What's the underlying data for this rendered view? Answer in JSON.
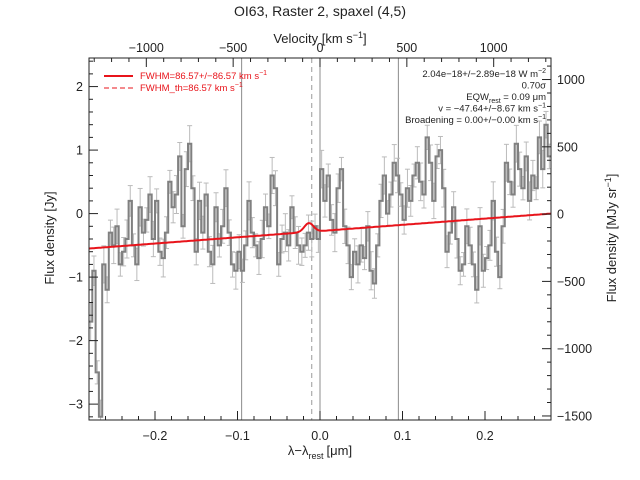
{
  "chart_data": {
    "type": "line",
    "title": "OI63, Raster 2, spaxel (4,5)",
    "xlabel_main": "λ−λ",
    "xlabel_sub": "rest",
    "xlabel_unit": "[μm]",
    "xlabel_top": "Velocity [km s",
    "xlabel_top_sup": "−1",
    "xlabel_top_close": "]",
    "ylabel_left": "Flux density [Jy]",
    "ylabel_right": "Flux density [MJy sr",
    "ylabel_right_sup": "−1",
    "ylabel_right_close": "]",
    "xlim": [
      -0.28,
      0.28
    ],
    "ylim": [
      -3.25,
      2.45
    ],
    "xlim_top": [
      -1330,
      1330
    ],
    "ylim_right": [
      -1530,
      1160
    ],
    "x_ticks": [
      -0.2,
      -0.1,
      0.0,
      0.1,
      0.2
    ],
    "x_tick_labels": [
      "−0.2",
      "−0.1",
      "0.0",
      "0.1",
      "0.2"
    ],
    "y_ticks": [
      -3,
      -2,
      -1,
      0,
      1,
      2
    ],
    "y_tick_labels": [
      "−3",
      "−2",
      "−1",
      "0",
      "1",
      "2"
    ],
    "top_ticks": [
      -1000,
      -500,
      0,
      500,
      1000
    ],
    "top_tick_labels": [
      "−1000",
      "−500",
      "0",
      "500",
      "1000"
    ],
    "right_ticks": [
      -1500,
      -1000,
      -500,
      0,
      500,
      1000
    ],
    "right_tick_labels": [
      "−1500",
      "−1000",
      "−500",
      "0",
      "500",
      "1000"
    ],
    "vlines_solid_gray": [
      -0.095,
      0.0,
      0.095
    ],
    "vline_dashed_gray": -0.01,
    "legend": {
      "placement": "top-left",
      "entries": [
        {
          "style": "solid",
          "color": "#e8141b",
          "label": "FWHM=86.57+/−86.57 km s",
          "sup": "−1"
        },
        {
          "style": "dashed",
          "color": "#e8141b",
          "label": "FWHM_th=86.57 km s",
          "sup": "−1"
        }
      ]
    },
    "annotations": [
      {
        "text": "2.04e−18+/−2.89e−18 W m",
        "sup": "−2"
      },
      {
        "text": "0.70σ"
      },
      {
        "text": "EQW",
        "sub": "rest",
        "text_after": " = 0.09 μm"
      },
      {
        "text": "v = −47.64+/−8.67 km s",
        "sup": "−1"
      },
      {
        "text": "Broadening = 0.00+/−0.00 km s",
        "sup": "−1"
      }
    ],
    "series": [
      {
        "kind": "spectrum",
        "style": "step",
        "color": "#808080",
        "errorbar_color": "#bbbbbb",
        "x": [
          -0.28,
          -0.276,
          -0.272,
          -0.268,
          -0.264,
          -0.26,
          -0.256,
          -0.252,
          -0.248,
          -0.244,
          -0.24,
          -0.236,
          -0.232,
          -0.228,
          -0.224,
          -0.22,
          -0.216,
          -0.212,
          -0.208,
          -0.204,
          -0.2,
          -0.196,
          -0.192,
          -0.188,
          -0.184,
          -0.18,
          -0.176,
          -0.172,
          -0.168,
          -0.164,
          -0.16,
          -0.156,
          -0.152,
          -0.148,
          -0.144,
          -0.14,
          -0.136,
          -0.132,
          -0.128,
          -0.124,
          -0.12,
          -0.116,
          -0.112,
          -0.108,
          -0.104,
          -0.1,
          -0.096,
          -0.092,
          -0.088,
          -0.084,
          -0.08,
          -0.076,
          -0.072,
          -0.068,
          -0.064,
          -0.06,
          -0.056,
          -0.052,
          -0.048,
          -0.044,
          -0.04,
          -0.036,
          -0.032,
          -0.028,
          -0.024,
          -0.02,
          -0.016,
          -0.012,
          -0.008,
          -0.004,
          0.0,
          0.004,
          0.008,
          0.012,
          0.016,
          0.02,
          0.024,
          0.028,
          0.032,
          0.036,
          0.04,
          0.044,
          0.048,
          0.052,
          0.056,
          0.06,
          0.064,
          0.068,
          0.072,
          0.076,
          0.08,
          0.084,
          0.088,
          0.092,
          0.096,
          0.1,
          0.104,
          0.108,
          0.112,
          0.116,
          0.12,
          0.124,
          0.128,
          0.132,
          0.136,
          0.14,
          0.144,
          0.148,
          0.152,
          0.156,
          0.16,
          0.164,
          0.168,
          0.172,
          0.176,
          0.18,
          0.184,
          0.188,
          0.192,
          0.196,
          0.2,
          0.204,
          0.208,
          0.212,
          0.216,
          0.22,
          0.224,
          0.228,
          0.232,
          0.236,
          0.24,
          0.244,
          0.248,
          0.252,
          0.256,
          0.26,
          0.264,
          0.268,
          0.272,
          0.276
        ],
        "y": [
          -1.7,
          -0.9,
          -2.5,
          -3.2,
          -0.8,
          -1.2,
          -0.3,
          -0.5,
          -0.2,
          -0.8,
          -0.6,
          -0.4,
          0.2,
          -0.5,
          -0.8,
          0.1,
          -0.3,
          -0.1,
          0.3,
          -0.4,
          0.2,
          -0.6,
          -0.7,
          -0.3,
          0.5,
          0.1,
          0.3,
          0.9,
          -0.2,
          0.7,
          1.1,
          0.4,
          -0.6,
          0.2,
          -0.3,
          0.3,
          -0.6,
          -0.8,
          0.1,
          -0.5,
          -0.2,
          0.4,
          -0.3,
          -0.8,
          -0.9,
          -0.6,
          -0.9,
          -0.5,
          0.2,
          -0.3,
          -0.5,
          -0.7,
          -0.4,
          0.1,
          -0.2,
          0.6,
          0.4,
          -0.8,
          -0.4,
          -0.3,
          -0.5,
          0.1,
          -0.3,
          -0.5,
          -0.6,
          -0.5,
          -0.3,
          -0.4,
          -0.2,
          -0.4,
          0.7,
          0.2,
          0.6,
          -0.1,
          -0.3,
          0.4,
          0.7,
          -0.2,
          -0.5,
          -1.0,
          -0.6,
          -0.8,
          -0.5,
          -0.7,
          -0.2,
          -0.9,
          -1.1,
          -0.5,
          0.2,
          0.6,
          0.0,
          0.3,
          0.8,
          0.6,
          0.3,
          -0.1,
          0.4,
          0.2,
          0.6,
          0.8,
          0.5,
          0.3,
          1.2,
          0.8,
          0.2,
          0.9,
          1.0,
          0.4,
          -0.6,
          -0.3,
          0.1,
          -0.4,
          -0.9,
          -0.8,
          -0.2,
          -0.5,
          -0.8,
          -1.2,
          -0.2,
          -0.9,
          -0.7,
          -0.5,
          0.2,
          -0.6,
          -1.0,
          -0.2,
          0.8,
          0.5,
          0.3,
          1.1,
          0.7,
          0.4,
          0.9,
          0.2,
          0.6,
          0.4,
          1.2,
          0.7,
          1.4,
          0.9
        ]
      },
      {
        "kind": "model",
        "style": "line",
        "color": "#e8141b",
        "continuum": [
          [
            -0.28,
            -0.55
          ],
          [
            0.28,
            0.0
          ]
        ],
        "line_center": -0.0135,
        "line_amplitude": 0.14,
        "line_sigma": 0.0055
      }
    ]
  }
}
